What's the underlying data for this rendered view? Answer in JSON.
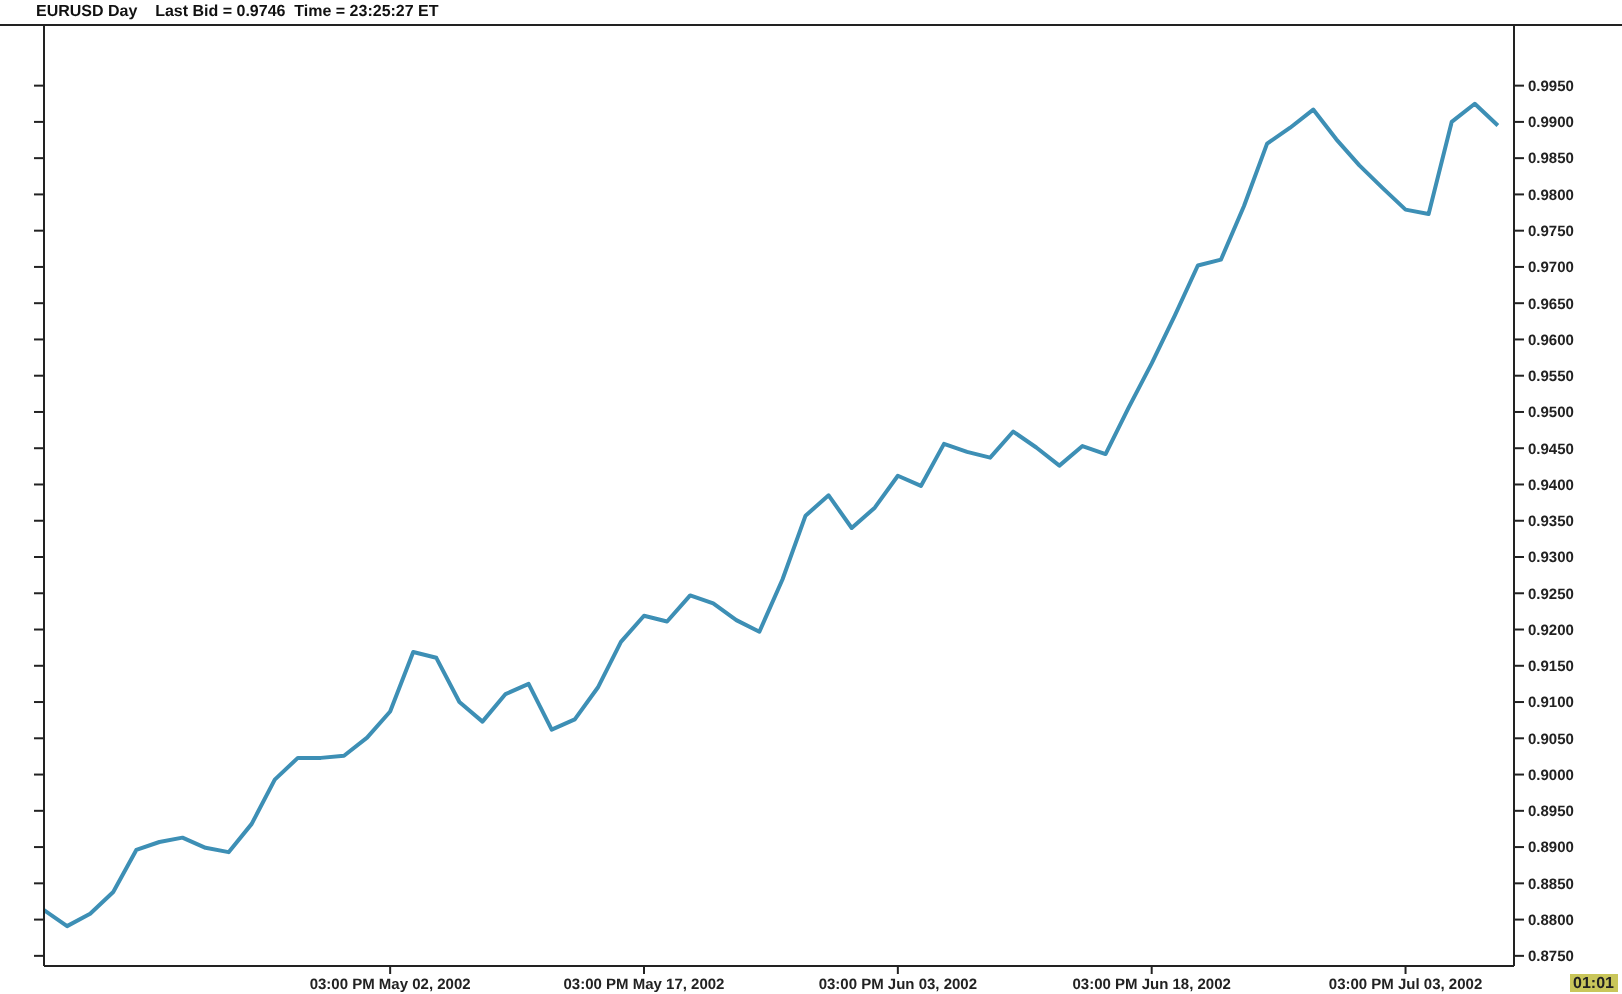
{
  "chart_data": {
    "type": "line",
    "title": "EURUSD Day    Last Bid = 0.9746  Time = 23:25:27 ET",
    "categories": [
      null,
      null,
      null,
      null,
      null,
      null,
      null,
      null,
      null,
      null,
      null,
      null,
      null,
      null,
      null,
      "03:00 PM May 02, 2002",
      null,
      null,
      null,
      null,
      null,
      null,
      null,
      null,
      null,
      null,
      "03:00 PM May 17, 2002",
      null,
      null,
      null,
      null,
      null,
      null,
      null,
      null,
      null,
      null,
      "03:00 PM Jun 03, 2002",
      null,
      null,
      null,
      null,
      null,
      null,
      null,
      null,
      null,
      null,
      "03:00 PM Jun 18, 2002",
      null,
      null,
      null,
      null,
      null,
      null,
      null,
      null,
      null,
      null,
      "03:00 PM Jul 03, 2002",
      null,
      null,
      null,
      null
    ],
    "series": [
      {
        "color": "#3d8fb5",
        "values": [
          0.8813,
          0.8791,
          0.8808,
          0.8838,
          0.8896,
          0.8907,
          0.8913,
          0.8899,
          0.8893,
          0.8932,
          0.8993,
          0.9023,
          0.9023,
          0.9026,
          0.9051,
          0.9087,
          0.9169,
          0.9161,
          0.91,
          0.9073,
          0.9111,
          0.9125,
          0.9062,
          0.9076,
          0.912,
          0.9183,
          0.9219,
          0.9211,
          0.9247,
          0.9236,
          0.9213,
          0.9197,
          0.9269,
          0.9357,
          0.9385,
          0.934,
          0.9368,
          0.9412,
          0.9398,
          0.9456,
          0.9445,
          0.9437,
          0.9473,
          0.9451,
          0.9426,
          0.9453,
          0.9442,
          0.9506,
          0.9567,
          0.9633,
          0.9702,
          0.971,
          0.9784,
          0.987,
          0.9892,
          0.9917,
          0.9876,
          0.984,
          0.9809,
          0.9779,
          0.9773,
          0.99,
          0.9925,
          0.9895
        ]
      }
    ],
    "ylim": [
      0.8736,
      1.0035
    ],
    "yticks": [
      {
        "value": 0.875,
        "label": "0.8750"
      },
      {
        "value": 0.88,
        "label": "0.8800"
      },
      {
        "value": 0.885,
        "label": "0.8850"
      },
      {
        "value": 0.89,
        "label": "0.8900"
      },
      {
        "value": 0.895,
        "label": "0.8950"
      },
      {
        "value": 0.9,
        "label": "0.9000"
      },
      {
        "value": 0.905,
        "label": "0.9050"
      },
      {
        "value": 0.91,
        "label": "0.9100"
      },
      {
        "value": 0.915,
        "label": "0.9150"
      },
      {
        "value": 0.92,
        "label": "0.9200"
      },
      {
        "value": 0.925,
        "label": "0.9250"
      },
      {
        "value": 0.93,
        "label": "0.9300"
      },
      {
        "value": 0.935,
        "label": "0.9350"
      },
      {
        "value": 0.94,
        "label": "0.9400"
      },
      {
        "value": 0.945,
        "label": "0.9450"
      },
      {
        "value": 0.95,
        "label": "0.9500"
      },
      {
        "value": 0.955,
        "label": "0.9550"
      },
      {
        "value": 0.96,
        "label": "0.9600"
      },
      {
        "value": 0.965,
        "label": "0.9650"
      },
      {
        "value": 0.97,
        "label": "0.9700"
      },
      {
        "value": 0.975,
        "label": "0.9750"
      },
      {
        "value": 0.98,
        "label": "0.9800"
      },
      {
        "value": 0.985,
        "label": "0.9850"
      },
      {
        "value": 0.99,
        "label": "0.9900"
      },
      {
        "value": 0.995,
        "label": "0.9950"
      }
    ],
    "grid": false,
    "legend": false,
    "marker": "none",
    "line_style": "solid",
    "annotations": [
      "01:01"
    ]
  }
}
